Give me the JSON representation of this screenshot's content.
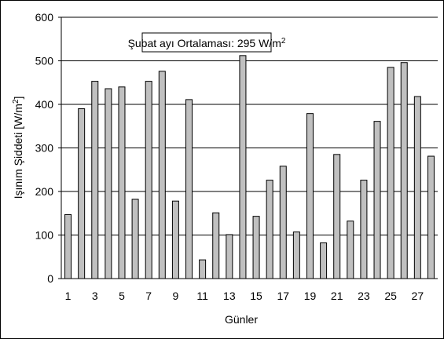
{
  "chart_data": {
    "type": "bar",
    "categories": [
      "1",
      null,
      "3",
      null,
      "5",
      null,
      "7",
      null,
      "9",
      null,
      "11",
      null,
      "13",
      null,
      "15",
      null,
      "17",
      null,
      "19",
      null,
      "21",
      null,
      "23",
      null,
      "25",
      null,
      "27",
      null
    ],
    "values": [
      147,
      390,
      453,
      436,
      440,
      182,
      453,
      476,
      178,
      411,
      43,
      151,
      101,
      512,
      143,
      226,
      258,
      107,
      379,
      82,
      285,
      132,
      226,
      361,
      485,
      496,
      418,
      281
    ],
    "color": "#c0c0c0",
    "ylim": [
      0,
      600
    ],
    "yticks": [
      0,
      100,
      200,
      300,
      400,
      500,
      600
    ],
    "grid": true,
    "x_label": "Günler",
    "y_label": {
      "text": "Işınım Şiddeti [W/m",
      "sup": "2",
      "end": "]"
    },
    "annotation": {
      "text": "Şubat ayı Ortalaması: 295 W/m",
      "sup": "2"
    }
  }
}
